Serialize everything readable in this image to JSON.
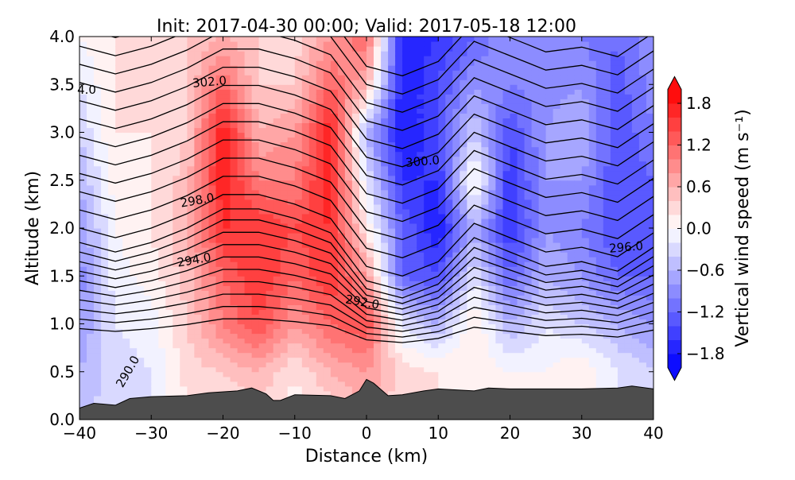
{
  "chart_data": {
    "type": "heatmap",
    "title": "Init: 2017-04-30 00:00; Valid: 2017-05-18 12:00",
    "xlabel": "Distance (km)",
    "ylabel": "Altitude (km)",
    "xlim": [
      -40,
      40
    ],
    "ylim": [
      0,
      4
    ],
    "xticks": [
      "−40",
      "−30",
      "−20",
      "−10",
      "0",
      "10",
      "20",
      "30",
      "40"
    ],
    "xtick_values": [
      -40,
      -30,
      -20,
      -10,
      0,
      10,
      20,
      30,
      40
    ],
    "yticks": [
      "0.0",
      "0.5",
      "1.0",
      "1.5",
      "2.0",
      "2.5",
      "3.0",
      "3.5",
      "4.0"
    ],
    "ytick_values": [
      0,
      0.5,
      1,
      1.5,
      2,
      2.5,
      3,
      3.5,
      4
    ],
    "grid": false,
    "colormap": "bwr",
    "colorbar": {
      "label": "Vertical wind speed (m s⁻¹)",
      "range": [
        -2.0,
        2.0
      ],
      "level_step": 0.2,
      "extend": "both",
      "ticks": [
        "−1.8",
        "−1.2",
        "−0.6",
        "0.0",
        "0.6",
        "1.2",
        "1.8"
      ],
      "tick_values": [
        -1.8,
        -1.2,
        -0.6,
        0,
        0.6,
        1.2,
        1.8
      ]
    },
    "field": {
      "x": [
        -40,
        -35,
        -30,
        -25,
        -20,
        -15,
        -10,
        -5,
        0,
        5,
        10,
        15,
        20,
        25,
        30,
        35,
        40
      ],
      "z": [
        0,
        0.5,
        1,
        1.5,
        2,
        2.5,
        3,
        3.5,
        4
      ],
      "w": [
        [
          -0.4,
          -0.3,
          -0.2,
          0.1,
          0.2,
          0.2,
          0.1,
          0.2,
          0.6,
          0.2,
          0.2,
          0.1,
          0.0,
          0.0,
          0.0,
          -0.2,
          -0.3
        ],
        [
          -0.6,
          -0.3,
          -0.2,
          0.3,
          0.4,
          0.6,
          0.2,
          0.6,
          0.8,
          0.3,
          0.2,
          0.2,
          0.0,
          0.0,
          0.2,
          -0.2,
          -0.4
        ],
        [
          -0.8,
          -0.2,
          -0.1,
          0.4,
          1.0,
          1.4,
          0.8,
          1.2,
          1.4,
          -0.2,
          -0.6,
          0.2,
          -0.6,
          -0.2,
          -0.4,
          -0.6,
          -0.8
        ],
        [
          -0.9,
          -0.1,
          0.1,
          0.5,
          1.2,
          1.6,
          1.2,
          1.6,
          0.8,
          -1.2,
          -1.4,
          -0.2,
          -1.2,
          -0.6,
          -0.8,
          -1.2,
          -1.2
        ],
        [
          -0.8,
          0.0,
          0.2,
          0.6,
          1.6,
          1.6,
          1.4,
          1.6,
          0.2,
          -1.2,
          -1.8,
          -0.6,
          -1.6,
          -0.8,
          -1.0,
          -1.4,
          -1.4
        ],
        [
          -0.6,
          0.1,
          0.2,
          0.5,
          1.8,
          1.0,
          1.0,
          1.8,
          -0.2,
          -1.6,
          -1.6,
          0.2,
          -1.6,
          -0.8,
          -0.8,
          -1.4,
          -1.2
        ],
        [
          -0.4,
          0.2,
          0.2,
          0.4,
          1.8,
          0.6,
          0.8,
          1.8,
          -0.6,
          -1.8,
          -1.4,
          -0.4,
          -1.4,
          -0.8,
          -0.6,
          -1.4,
          -1.0
        ],
        [
          -0.2,
          0.2,
          0.3,
          0.4,
          1.2,
          0.4,
          0.4,
          1.2,
          0.6,
          -1.8,
          -1.4,
          -0.8,
          -1.0,
          -0.9,
          -0.8,
          -1.3,
          -0.9
        ],
        [
          0.0,
          0.2,
          0.3,
          0.4,
          0.6,
          0.4,
          0.3,
          0.8,
          1.2,
          -1.8,
          -1.6,
          -1.2,
          -0.8,
          -1.0,
          -1.0,
          -1.2,
          -0.8
        ]
      ]
    },
    "contour_labels": [
      "290.0",
      "292.0",
      "294.0",
      "296.0",
      "298.0",
      "300.0",
      "302.0",
      "4.0"
    ],
    "terrain": {
      "x": [
        -40,
        -38,
        -35,
        -33,
        -30,
        -25,
        -22,
        -18,
        -16,
        -14,
        -13,
        -12,
        -10,
        -5,
        -3,
        -1,
        0,
        1,
        3,
        5,
        8,
        10,
        15,
        17,
        20,
        30,
        35,
        37,
        40
      ],
      "z": [
        0.12,
        0.17,
        0.15,
        0.22,
        0.24,
        0.25,
        0.28,
        0.3,
        0.33,
        0.27,
        0.2,
        0.2,
        0.26,
        0.25,
        0.22,
        0.3,
        0.42,
        0.38,
        0.25,
        0.26,
        0.3,
        0.32,
        0.3,
        0.33,
        0.32,
        0.32,
        0.33,
        0.35,
        0.32
      ],
      "color": "#4d4d4d"
    }
  }
}
